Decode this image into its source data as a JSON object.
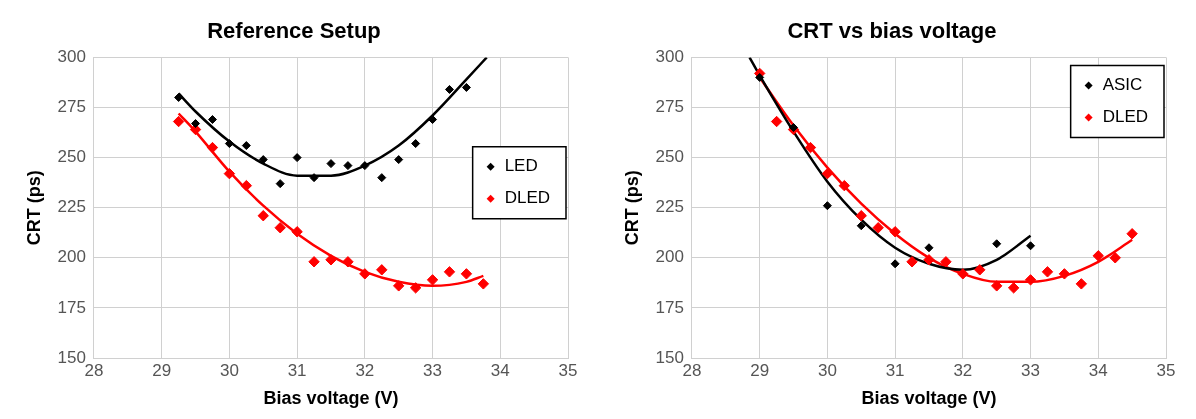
{
  "chart_data": [
    {
      "type": "scatter",
      "title": "Reference Setup",
      "xlabel": "Bias voltage (V)",
      "ylabel": "CRT (ps)",
      "xlim": [
        28,
        35
      ],
      "xticks": [
        28,
        29,
        30,
        31,
        32,
        33,
        34,
        35
      ],
      "ylim": [
        150,
        300
      ],
      "yticks": [
        150,
        175,
        200,
        225,
        250,
        275,
        300
      ],
      "grid": true,
      "legend": "right",
      "marker": "diamond",
      "series": [
        {
          "name": "LED",
          "color": "#000000",
          "x": [
            29.25,
            29.5,
            29.75,
            30,
            30.25,
            30.5,
            30.75,
            31,
            31.25,
            31.5,
            31.75,
            32,
            32.25,
            32.5,
            32.75,
            33,
            33.25,
            33.5
          ],
          "values": [
            280,
            267,
            269,
            257,
            256,
            249,
            237,
            250,
            240,
            247,
            246,
            246,
            240,
            249,
            257,
            269,
            284,
            285
          ]
        },
        {
          "name": "DLED",
          "color": "#ff0000",
          "x": [
            29.25,
            29.5,
            29.75,
            30,
            30.25,
            30.5,
            30.75,
            31,
            31.25,
            31.5,
            31.75,
            32,
            32.25,
            32.5,
            32.75,
            33,
            33.25,
            33.5,
            33.75
          ],
          "values": [
            268,
            264,
            255,
            242,
            236,
            221,
            215,
            213,
            198,
            199,
            198,
            192,
            194,
            186,
            185,
            189,
            193,
            192,
            187
          ]
        },
        {
          "type": "line",
          "marker": "none",
          "color": "#000000",
          "x": [
            29.25,
            29.5,
            30,
            30.5,
            31,
            31.5,
            32,
            32.5,
            33,
            33.5,
            33.8
          ],
          "values": [
            282,
            273,
            258,
            247,
            241,
            241,
            246,
            256,
            271,
            289,
            300
          ]
        },
        {
          "type": "line",
          "marker": "none",
          "color": "#ff0000",
          "x": [
            29.25,
            29.5,
            30,
            30.5,
            31,
            31.5,
            32,
            32.5,
            33,
            33.5,
            33.75
          ],
          "values": [
            272,
            263,
            243,
            226,
            212,
            201,
            193,
            188,
            186,
            188,
            191
          ]
        }
      ]
    },
    {
      "type": "scatter",
      "title": "CRT vs bias voltage",
      "xlabel": "Bias voltage (V)",
      "ylabel": "CRT (ps)",
      "xlim": [
        28,
        35
      ],
      "xticks": [
        28,
        29,
        30,
        31,
        32,
        33,
        34,
        35
      ],
      "ylim": [
        150,
        300
      ],
      "yticks": [
        150,
        175,
        200,
        225,
        250,
        275,
        300
      ],
      "grid": true,
      "legend": "top right",
      "marker": "diamond",
      "series": [
        {
          "name": "ASIC",
          "color": "#000000",
          "x": [
            29,
            29.5,
            30,
            30.5,
            31,
            31.5,
            32.5,
            33
          ],
          "values": [
            290,
            265,
            226,
            216,
            197,
            205,
            207,
            206
          ]
        },
        {
          "name": "DLED",
          "color": "#ff0000",
          "x": [
            29,
            29.25,
            29.5,
            29.75,
            30,
            30.25,
            30.5,
            30.75,
            31,
            31.25,
            31.5,
            31.75,
            32,
            32.25,
            32.5,
            32.75,
            33,
            33.25,
            33.5,
            33.75,
            34,
            34.25,
            34.5
          ],
          "values": [
            292,
            268,
            264,
            255,
            242,
            236,
            221,
            215,
            213,
            198,
            199,
            198,
            192,
            194,
            186,
            185,
            189,
            193,
            192,
            187,
            201,
            200,
            212
          ]
        },
        {
          "type": "line",
          "marker": "none",
          "color": "#000000",
          "x": [
            28.85,
            29,
            29.5,
            30,
            30.5,
            31,
            31.5,
            32,
            32.5,
            33
          ],
          "values": [
            300,
            291,
            263,
            238,
            219,
            205,
            197,
            194,
            199,
            211
          ]
        },
        {
          "type": "line",
          "marker": "none",
          "color": "#ff0000",
          "x": [
            29,
            29.5,
            30,
            30.5,
            31,
            31.5,
            32,
            32.5,
            33,
            33.5,
            34,
            34.5
          ],
          "values": [
            290,
            266,
            245,
            227,
            212,
            200,
            192,
            188,
            188,
            191,
            198,
            209
          ]
        }
      ]
    }
  ]
}
